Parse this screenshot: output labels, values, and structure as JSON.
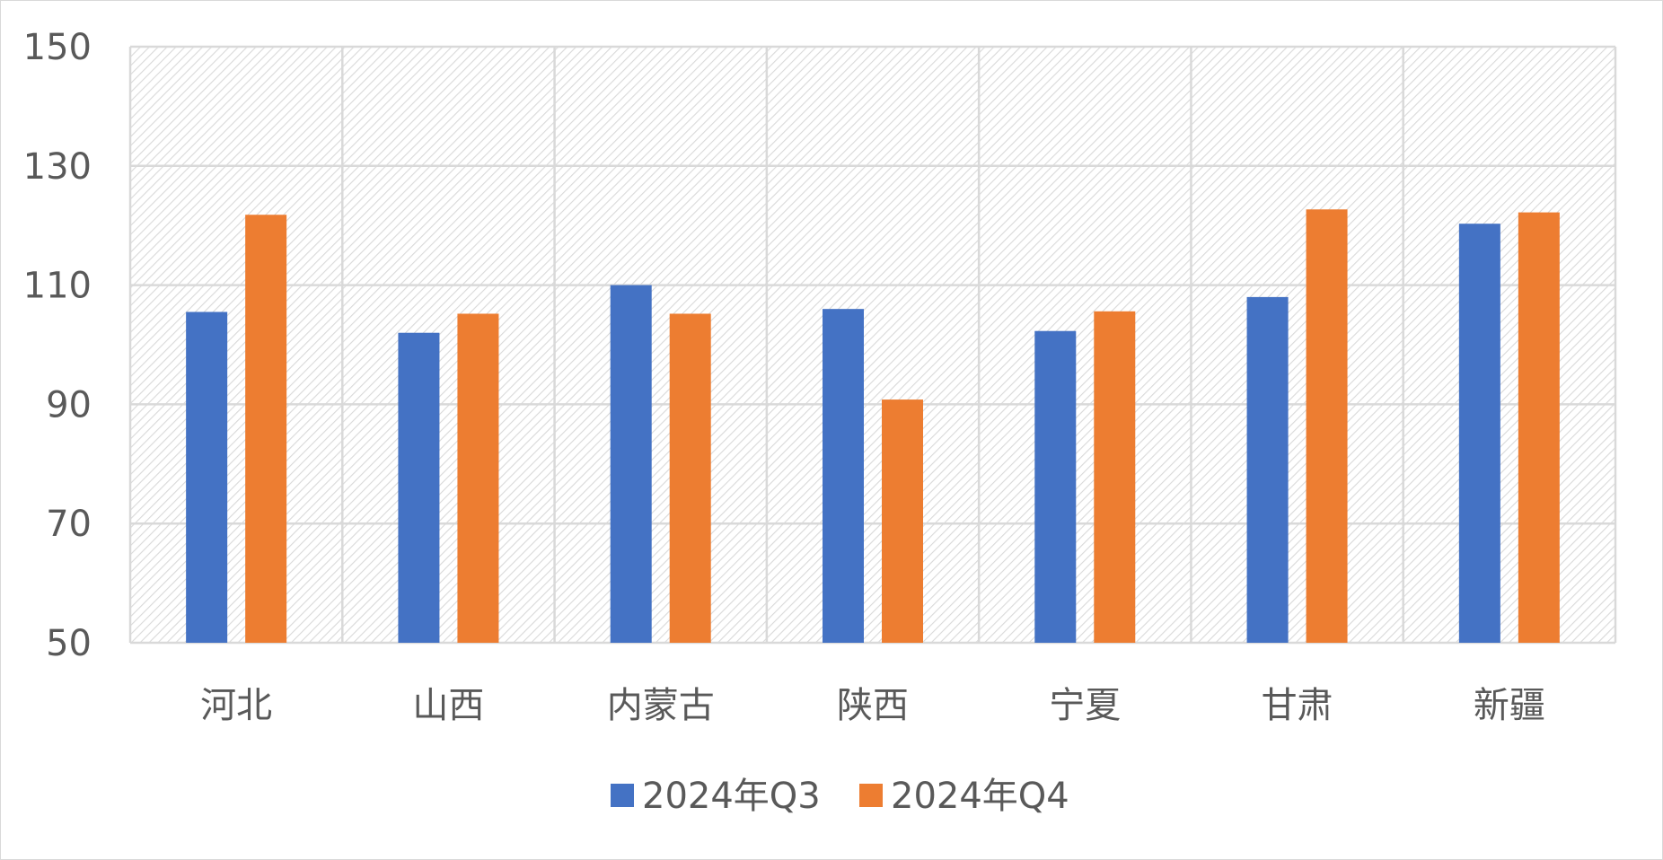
{
  "chart_data": {
    "type": "bar",
    "categories": [
      "河北",
      "山西",
      "内蒙古",
      "陕西",
      "宁夏",
      "甘肃",
      "新疆"
    ],
    "series": [
      {
        "name": "2024年Q3",
        "color": "#4472C4",
        "values": [
          105.5,
          102.0,
          110.0,
          106.0,
          102.3,
          108.0,
          120.3
        ]
      },
      {
        "name": "2024年Q4",
        "color": "#ED7D31",
        "values": [
          121.8,
          105.2,
          105.2,
          90.8,
          105.6,
          122.7,
          122.2
        ]
      }
    ],
    "yticks": [
      "50",
      "70",
      "90",
      "110",
      "130",
      "150"
    ],
    "ylim": [
      50,
      150
    ],
    "grid": true,
    "legend_position": "bottom"
  }
}
